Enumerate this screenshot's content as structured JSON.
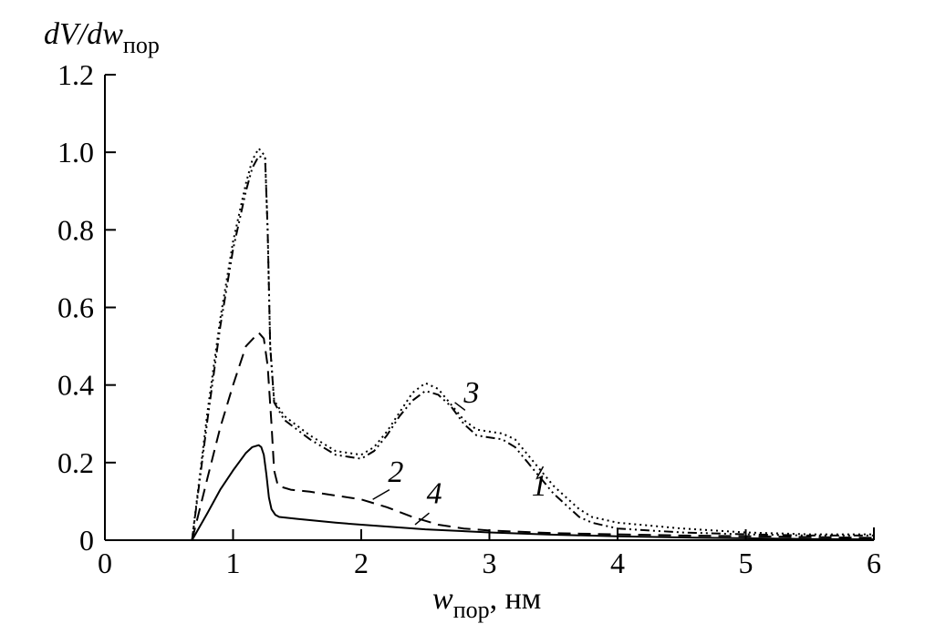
{
  "chart_data": {
    "type": "line",
    "ylabel": {
      "main": "dV/dw",
      "sub": "пор"
    },
    "xlabel": {
      "main": "w",
      "sub": "пор",
      "unit": ", нм"
    },
    "xlim": [
      0,
      6
    ],
    "ylim": [
      0,
      1.2
    ],
    "xticks": [
      {
        "value": 0,
        "label": "0"
      },
      {
        "value": 1,
        "label": "1"
      },
      {
        "value": 2,
        "label": "2"
      },
      {
        "value": 3,
        "label": "3"
      },
      {
        "value": 4,
        "label": "4"
      },
      {
        "value": 5,
        "label": "5"
      },
      {
        "value": 6,
        "label": "6"
      }
    ],
    "yticks": [
      {
        "value": 0,
        "label": "0"
      },
      {
        "value": 0.2,
        "label": "0.2"
      },
      {
        "value": 0.4,
        "label": "0.4"
      },
      {
        "value": 0.6,
        "label": "0.6"
      },
      {
        "value": 0.8,
        "label": "0.8"
      },
      {
        "value": 1.0,
        "label": "1.0"
      },
      {
        "value": 1.2,
        "label": "1.2"
      }
    ],
    "grid": false,
    "series": [
      {
        "name": "1",
        "dash": "2,4",
        "x": [
          0.68,
          0.8,
          0.9,
          1.0,
          1.1,
          1.15,
          1.2,
          1.25,
          1.27,
          1.29,
          1.32,
          1.4,
          1.6,
          1.8,
          2.0,
          2.1,
          2.2,
          2.3,
          2.4,
          2.5,
          2.6,
          2.7,
          2.8,
          2.9,
          3.0,
          3.1,
          3.2,
          3.3,
          3.4,
          3.5,
          3.6,
          3.7,
          3.8,
          4.0,
          4.5,
          5.0,
          5.5,
          6.0
        ],
        "y": [
          0.0,
          0.33,
          0.57,
          0.77,
          0.92,
          0.98,
          1.01,
          0.99,
          0.8,
          0.5,
          0.36,
          0.32,
          0.27,
          0.23,
          0.22,
          0.24,
          0.28,
          0.33,
          0.38,
          0.405,
          0.39,
          0.35,
          0.31,
          0.285,
          0.28,
          0.275,
          0.26,
          0.22,
          0.18,
          0.14,
          0.11,
          0.08,
          0.06,
          0.045,
          0.03,
          0.02,
          0.015,
          0.015
        ]
      },
      {
        "name": "2",
        "dash": "14,8",
        "x": [
          0.68,
          0.8,
          0.9,
          1.0,
          1.1,
          1.2,
          1.24,
          1.27,
          1.3,
          1.32,
          1.35,
          1.45,
          1.6,
          1.8,
          2.0,
          2.2,
          2.4,
          2.6,
          2.8,
          3.0,
          3.5,
          4.0,
          4.5,
          5.0,
          5.5,
          6.0
        ],
        "y": [
          0.0,
          0.16,
          0.29,
          0.4,
          0.5,
          0.535,
          0.52,
          0.45,
          0.3,
          0.18,
          0.14,
          0.13,
          0.125,
          0.115,
          0.105,
          0.085,
          0.06,
          0.04,
          0.03,
          0.025,
          0.018,
          0.015,
          0.012,
          0.01,
          0.008,
          0.006
        ]
      },
      {
        "name": "3",
        "dash": "10,4,2,4,2,4",
        "x": [
          0.68,
          0.8,
          0.9,
          1.0,
          1.1,
          1.15,
          1.2,
          1.25,
          1.27,
          1.29,
          1.32,
          1.4,
          1.6,
          1.8,
          2.0,
          2.1,
          2.2,
          2.3,
          2.4,
          2.5,
          2.6,
          2.7,
          2.8,
          2.9,
          3.0,
          3.1,
          3.2,
          3.3,
          3.4,
          3.5,
          3.6,
          3.7,
          3.8,
          4.0,
          4.5,
          5.0,
          5.5,
          6.0
        ],
        "y": [
          0.0,
          0.31,
          0.55,
          0.75,
          0.9,
          0.96,
          0.99,
          0.985,
          0.8,
          0.5,
          0.355,
          0.31,
          0.26,
          0.22,
          0.21,
          0.23,
          0.27,
          0.32,
          0.36,
          0.385,
          0.375,
          0.345,
          0.3,
          0.27,
          0.265,
          0.26,
          0.24,
          0.2,
          0.16,
          0.12,
          0.09,
          0.06,
          0.045,
          0.03,
          0.02,
          0.015,
          0.012,
          0.012
        ]
      },
      {
        "name": "4",
        "dash": "",
        "x": [
          0.68,
          0.8,
          0.9,
          1.0,
          1.1,
          1.15,
          1.2,
          1.22,
          1.24,
          1.26,
          1.28,
          1.3,
          1.33,
          1.36,
          1.5,
          1.8,
          2.0,
          2.5,
          3.0,
          3.5,
          4.0,
          4.5,
          5.0,
          5.5,
          6.0
        ],
        "y": [
          0.0,
          0.07,
          0.13,
          0.18,
          0.225,
          0.24,
          0.245,
          0.24,
          0.22,
          0.17,
          0.11,
          0.08,
          0.065,
          0.06,
          0.055,
          0.045,
          0.04,
          0.028,
          0.02,
          0.014,
          0.01,
          0.007,
          0.005,
          0.003,
          0.002
        ]
      }
    ],
    "annotations": [
      {
        "text": "3",
        "x": 2.86,
        "y": 0.355,
        "lx1": 2.81,
        "ly1": 0.335,
        "lx2": 2.73,
        "ly2": 0.355
      },
      {
        "text": "1",
        "x": 3.39,
        "y": 0.115,
        "lx1": 3.37,
        "ly1": 0.16,
        "lx2": 3.42,
        "ly2": 0.19
      },
      {
        "text": "2",
        "x": 2.27,
        "y": 0.15,
        "lx1": 2.22,
        "ly1": 0.13,
        "lx2": 2.09,
        "ly2": 0.105
      },
      {
        "text": "4",
        "x": 2.57,
        "y": 0.095,
        "lx1": 2.53,
        "ly1": 0.07,
        "lx2": 2.42,
        "ly2": 0.04
      }
    ]
  }
}
